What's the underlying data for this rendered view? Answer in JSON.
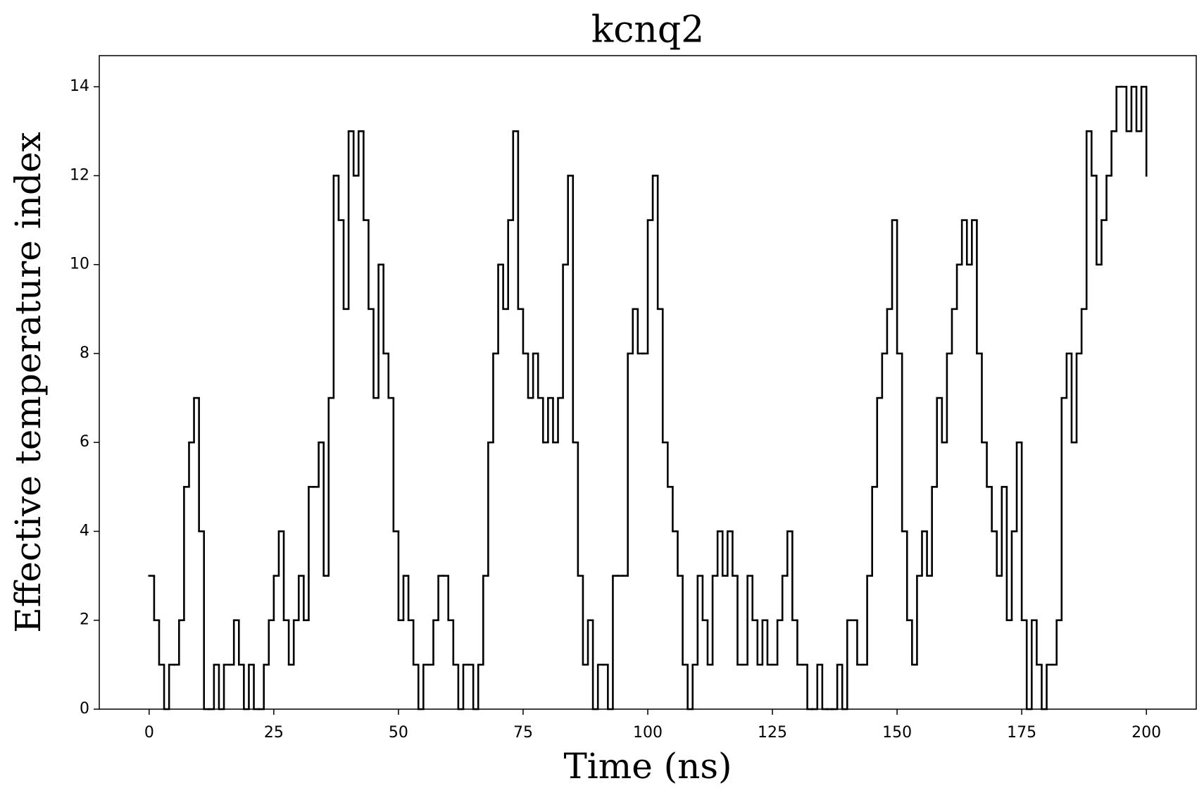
{
  "chart_data": {
    "type": "line",
    "step": "post",
    "title": "kcnq2",
    "x_label": "Time (ns)",
    "y_label": "Effective temperature index",
    "color": "#000000",
    "x": [
      0,
      1,
      2,
      3,
      4,
      5,
      6,
      7,
      8,
      9,
      10,
      11,
      12,
      13,
      14,
      15,
      16,
      17,
      18,
      19,
      20,
      21,
      22,
      23,
      24,
      25,
      26,
      27,
      28,
      29,
      30,
      31,
      32,
      33,
      34,
      35,
      36,
      37,
      38,
      39,
      40,
      41,
      42,
      43,
      44,
      45,
      46,
      47,
      48,
      49,
      50,
      51,
      52,
      53,
      54,
      55,
      56,
      57,
      58,
      59,
      60,
      61,
      62,
      63,
      64,
      65,
      66,
      67,
      68,
      69,
      70,
      71,
      72,
      73,
      74,
      75,
      76,
      77,
      78,
      79,
      80,
      81,
      82,
      83,
      84,
      85,
      86,
      87,
      88,
      89,
      90,
      91,
      92,
      93,
      94,
      95,
      96,
      97,
      98,
      99,
      100,
      101,
      102,
      103,
      104,
      105,
      106,
      107,
      108,
      109,
      110,
      111,
      112,
      113,
      114,
      115,
      116,
      117,
      118,
      119,
      120,
      121,
      122,
      123,
      124,
      125,
      126,
      127,
      128,
      129,
      130,
      131,
      132,
      133,
      134,
      135,
      136,
      137,
      138,
      139,
      140,
      141,
      142,
      143,
      144,
      145,
      146,
      147,
      148,
      149,
      150,
      151,
      152,
      153,
      154,
      155,
      156,
      157,
      158,
      159,
      160,
      161,
      162,
      163,
      164,
      165,
      166,
      167,
      168,
      169,
      170,
      171,
      172,
      173,
      174,
      175,
      176,
      177,
      178,
      179,
      180,
      181,
      182,
      183,
      184,
      185,
      186,
      187,
      188,
      189,
      190,
      191,
      192,
      193,
      194,
      195,
      196,
      197,
      198,
      199,
      200
    ],
    "values": [
      3,
      2,
      1,
      0,
      1,
      1,
      2,
      5,
      6,
      7,
      4,
      0,
      0,
      1,
      0,
      1,
      1,
      2,
      1,
      0,
      1,
      0,
      0,
      1,
      2,
      3,
      4,
      2,
      1,
      2,
      3,
      2,
      5,
      5,
      6,
      3,
      7,
      12,
      11,
      9,
      13,
      12,
      13,
      11,
      9,
      7,
      10,
      8,
      7,
      4,
      2,
      3,
      2,
      1,
      0,
      1,
      1,
      2,
      3,
      3,
      2,
      1,
      0,
      1,
      1,
      0,
      1,
      3,
      6,
      8,
      10,
      9,
      11,
      13,
      9,
      8,
      7,
      8,
      7,
      6,
      7,
      6,
      7,
      10,
      12,
      6,
      3,
      1,
      2,
      0,
      1,
      1,
      0,
      3,
      3,
      3,
      8,
      9,
      8,
      8,
      11,
      12,
      9,
      6,
      5,
      4,
      3,
      1,
      0,
      1,
      3,
      2,
      1,
      3,
      4,
      3,
      4,
      3,
      1,
      1,
      3,
      2,
      1,
      2,
      1,
      1,
      2,
      3,
      4,
      2,
      1,
      1,
      0,
      0,
      1,
      0,
      0,
      0,
      1,
      0,
      2,
      2,
      1,
      1,
      3,
      5,
      7,
      8,
      9,
      11,
      8,
      4,
      2,
      1,
      3,
      4,
      3,
      5,
      7,
      6,
      8,
      9,
      10,
      11,
      10,
      11,
      8,
      6,
      5,
      4,
      3,
      5,
      2,
      4,
      6,
      2,
      0,
      2,
      1,
      0,
      1,
      1,
      2,
      7,
      8,
      6,
      8,
      9,
      13,
      12,
      10,
      11,
      12,
      13,
      14,
      14,
      13,
      14,
      13,
      14,
      12
    ],
    "xlim": [
      -10,
      210
    ],
    "ylim": [
      0,
      14.7
    ],
    "xticks": [
      0,
      25,
      50,
      75,
      100,
      125,
      150,
      175,
      200
    ],
    "yticks": [
      0,
      2,
      4,
      6,
      8,
      10,
      12,
      14
    ]
  }
}
